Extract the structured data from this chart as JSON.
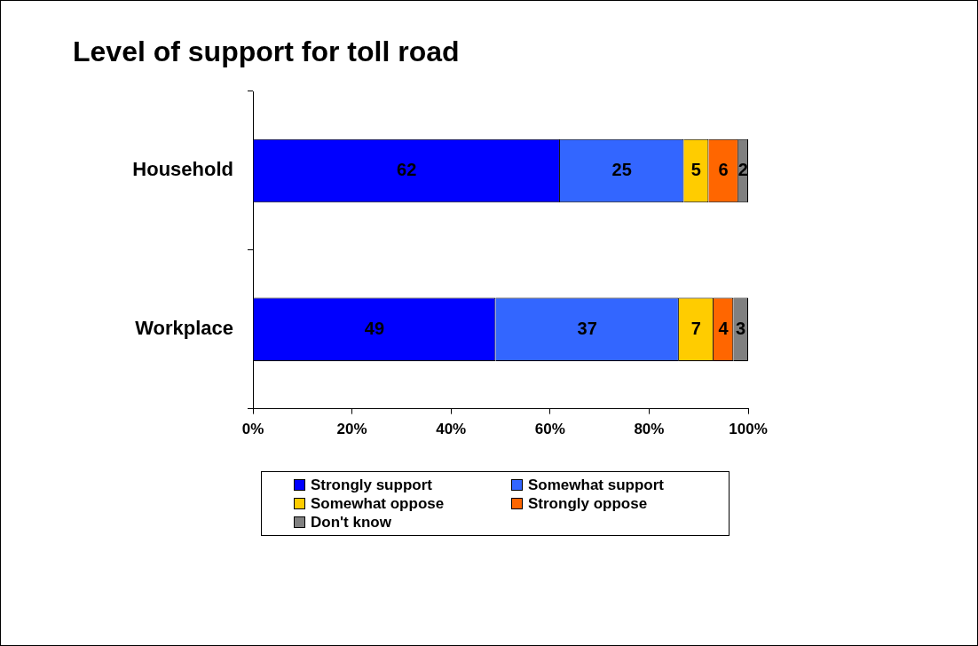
{
  "chart_data": {
    "type": "bar",
    "orientation": "horizontal",
    "stacked": true,
    "title": "Level of support for toll road",
    "categories": [
      "Household",
      "Workplace"
    ],
    "series": [
      {
        "name": "Strongly support",
        "color": "#0000ff",
        "values": [
          62,
          49
        ]
      },
      {
        "name": "Somewhat support",
        "color": "#3366ff",
        "values": [
          25,
          37
        ]
      },
      {
        "name": "Somewhat oppose",
        "color": "#ffcc00",
        "values": [
          5,
          7
        ]
      },
      {
        "name": "Strongly oppose",
        "color": "#ff6600",
        "values": [
          6,
          4
        ]
      },
      {
        "name": "Don't know",
        "color": "#808080",
        "values": [
          2,
          3
        ]
      }
    ],
    "xlim": [
      0,
      100
    ],
    "xticks": [
      {
        "value": 0,
        "label": "0%"
      },
      {
        "value": 20,
        "label": "20%"
      },
      {
        "value": 40,
        "label": "40%"
      },
      {
        "value": 60,
        "label": "60%"
      },
      {
        "value": 80,
        "label": "80%"
      },
      {
        "value": 100,
        "label": "100%"
      }
    ],
    "data_labels": true,
    "legend": "bottom"
  }
}
